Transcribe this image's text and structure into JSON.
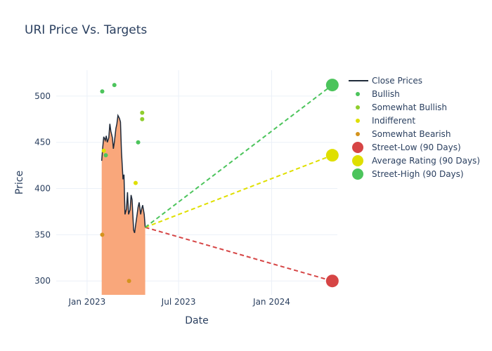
{
  "title": "URI Price Vs. Targets",
  "chart_data": {
    "type": "line",
    "title": "URI Price Vs. Targets",
    "xlabel": "Date",
    "ylabel": "Price",
    "xlim": [
      "2022-11-01",
      "2024-05-10"
    ],
    "ylim": [
      285,
      528
    ],
    "x_ticks": [
      "2023-01-01",
      "2023-07-01",
      "2024-01-01"
    ],
    "x_tick_labels": [
      "Jan 2023",
      "Jul 2023",
      "Jan 2024"
    ],
    "y_ticks": [
      300,
      350,
      400,
      450,
      500
    ],
    "y_tick_labels": [
      "300",
      "350",
      "400",
      "450",
      "500"
    ],
    "grid": true,
    "legend_position": "right",
    "close_prices": {
      "name": "Close Prices",
      "color": "#1f2a3a",
      "fill_color": "#f9a77b",
      "points": [
        [
          "2023-01-30",
          430
        ],
        [
          "2023-02-01",
          445
        ],
        [
          "2023-02-03",
          456
        ],
        [
          "2023-02-06",
          452
        ],
        [
          "2023-02-08",
          457
        ],
        [
          "2023-02-10",
          450
        ],
        [
          "2023-02-13",
          455
        ],
        [
          "2023-02-15",
          470
        ],
        [
          "2023-02-17",
          462
        ],
        [
          "2023-02-20",
          455
        ],
        [
          "2023-02-22",
          443
        ],
        [
          "2023-02-24",
          450
        ],
        [
          "2023-02-27",
          465
        ],
        [
          "2023-03-01",
          470
        ],
        [
          "2023-03-03",
          479
        ],
        [
          "2023-03-06",
          476
        ],
        [
          "2023-03-08",
          472
        ],
        [
          "2023-03-10",
          440
        ],
        [
          "2023-03-13",
          410
        ],
        [
          "2023-03-15",
          415
        ],
        [
          "2023-03-17",
          372
        ],
        [
          "2023-03-20",
          378
        ],
        [
          "2023-03-22",
          396
        ],
        [
          "2023-03-24",
          372
        ],
        [
          "2023-03-27",
          377
        ],
        [
          "2023-03-29",
          393
        ],
        [
          "2023-03-31",
          388
        ],
        [
          "2023-04-03",
          355
        ],
        [
          "2023-04-05",
          352
        ],
        [
          "2023-04-07",
          360
        ],
        [
          "2023-04-10",
          372
        ],
        [
          "2023-04-12",
          380
        ],
        [
          "2023-04-14",
          385
        ],
        [
          "2023-04-17",
          372
        ],
        [
          "2023-04-19",
          378
        ],
        [
          "2023-04-21",
          382
        ],
        [
          "2023-04-24",
          372
        ],
        [
          "2023-04-26",
          358
        ]
      ]
    },
    "ratings": [
      {
        "name": "Bullish",
        "color": "#4cc45c",
        "points": [
          [
            "2023-01-31",
            505
          ],
          [
            "2023-02-07",
            436
          ],
          [
            "2023-02-24",
            512
          ],
          [
            "2023-04-12",
            450
          ]
        ]
      },
      {
        "name": "Somewhat Bullish",
        "color": "#8fce2d",
        "points": [
          [
            "2023-04-20",
            482
          ],
          [
            "2023-04-20",
            475
          ]
        ]
      },
      {
        "name": "Indifferent",
        "color": "#dfdf00",
        "points": [
          [
            "2023-02-03",
            441
          ],
          [
            "2023-04-07",
            406
          ]
        ]
      },
      {
        "name": "Somewhat Bearish",
        "color": "#d4931d",
        "points": [
          [
            "2023-01-31",
            350
          ],
          [
            "2023-03-25",
            300
          ]
        ]
      }
    ],
    "targets": [
      {
        "name": "Street-Low (90 Days)",
        "color": "#d64545",
        "value": 300,
        "date": "2024-04-30"
      },
      {
        "name": "Average Rating (90 Days)",
        "color": "#dfdf00",
        "value": 436,
        "date": "2024-04-30"
      },
      {
        "name": "Street-High (90 Days)",
        "color": "#4cc45c",
        "value": 512,
        "date": "2024-04-30"
      }
    ],
    "target_lines_start": {
      "date": "2023-04-26",
      "value": 358
    }
  },
  "legend": [
    {
      "label": "Close Prices",
      "kind": "line",
      "color": "#1f2a3a"
    },
    {
      "label": "Bullish",
      "kind": "small",
      "color": "#4cc45c"
    },
    {
      "label": "Somewhat Bullish",
      "kind": "small",
      "color": "#8fce2d"
    },
    {
      "label": "Indifferent",
      "kind": "small",
      "color": "#dfdf00"
    },
    {
      "label": "Somewhat Bearish",
      "kind": "small",
      "color": "#d4931d"
    },
    {
      "label": "Street-Low (90 Days)",
      "kind": "big",
      "color": "#d64545"
    },
    {
      "label": "Average Rating (90 Days)",
      "kind": "big",
      "color": "#dfdf00"
    },
    {
      "label": "Street-High (90 Days)",
      "kind": "big",
      "color": "#4cc45c"
    }
  ]
}
